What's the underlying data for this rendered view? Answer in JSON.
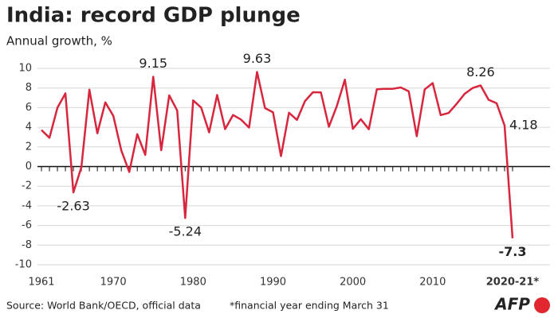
{
  "chart_data": {
    "type": "line",
    "title": "India: record GDP plunge",
    "subtitle": "Annual growth, %",
    "x": [
      1961,
      1962,
      1963,
      1964,
      1965,
      1966,
      1967,
      1968,
      1969,
      1970,
      1971,
      1972,
      1973,
      1974,
      1975,
      1976,
      1977,
      1978,
      1979,
      1980,
      1981,
      1982,
      1983,
      1984,
      1985,
      1986,
      1987,
      1988,
      1989,
      1990,
      1991,
      1992,
      1993,
      1994,
      1995,
      1996,
      1997,
      1998,
      1999,
      2000,
      2001,
      2002,
      2003,
      2004,
      2005,
      2006,
      2007,
      2008,
      2009,
      2010,
      2011,
      2012,
      2013,
      2014,
      2015,
      2016,
      2017,
      2018,
      2019,
      2020
    ],
    "series": [
      {
        "name": "Annual growth",
        "color": "#d7263d",
        "values": [
          3.72,
          2.93,
          5.99,
          7.45,
          -2.63,
          -0.06,
          7.83,
          3.39,
          6.54,
          5.16,
          1.64,
          -0.55,
          3.3,
          1.19,
          9.15,
          1.66,
          7.25,
          5.71,
          -5.24,
          6.74,
          6.01,
          3.48,
          7.29,
          3.82,
          5.25,
          4.78,
          3.97,
          9.63,
          5.95,
          5.53,
          1.06,
          5.48,
          4.75,
          6.66,
          7.57,
          7.55,
          4.05,
          6.18,
          8.85,
          3.84,
          4.82,
          3.8,
          7.86,
          7.92,
          7.92,
          8.06,
          7.66,
          3.09,
          7.86,
          8.5,
          5.24,
          5.46,
          6.39,
          7.41,
          8.0,
          8.26,
          6.8,
          6.45,
          4.18,
          -7.3
        ]
      }
    ],
    "labeled_points": [
      4,
      14,
      18,
      27,
      55,
      58,
      59
    ],
    "xlim": [
      1960.5,
      2021
    ],
    "xticks": [
      1961,
      1970,
      1980,
      1990,
      2000,
      2010,
      {
        "value": 2020,
        "label": "2020-21*"
      }
    ],
    "ylim": [
      -10,
      10
    ],
    "yticks": [
      10,
      8,
      6,
      4,
      2,
      0,
      -2,
      -4,
      -6,
      -8,
      -10
    ],
    "grid": true,
    "source": "Source: World Bank/OECD, official data",
    "footnote": "*financial year ending March 31",
    "logo": "AFP"
  }
}
